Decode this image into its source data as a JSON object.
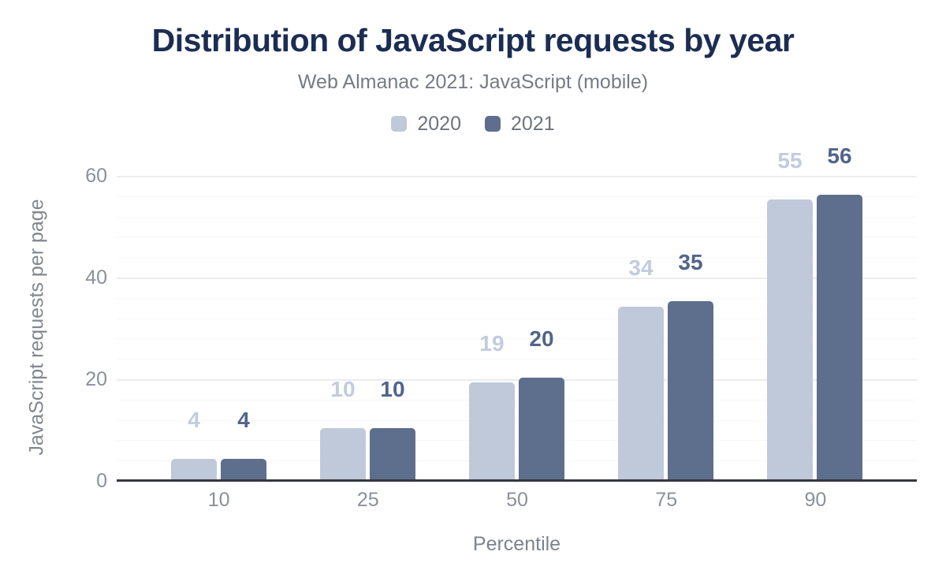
{
  "chart_data": {
    "type": "bar",
    "title": "Distribution of JavaScript requests by year",
    "subtitle": "Web Almanac 2021: JavaScript (mobile)",
    "xlabel": "Percentile",
    "ylabel": "JavaScript requests per page",
    "categories": [
      "10",
      "25",
      "50",
      "75",
      "90"
    ],
    "series": [
      {
        "name": "2020",
        "color": "#c0c9da",
        "label_color": "#c2ccde",
        "values": [
          4,
          10,
          19,
          34,
          55
        ]
      },
      {
        "name": "2021",
        "color": "#5e6e8d",
        "label_color": "#52648b",
        "values": [
          4,
          10,
          20,
          35,
          56
        ]
      }
    ],
    "ylim": [
      0,
      60
    ],
    "yticks": [
      0,
      20,
      40,
      60
    ],
    "minor_tick_interval": 4,
    "grid": "on",
    "legend_position": "top",
    "colors": {
      "title": "#1b2d52",
      "subtitle": "#767b84",
      "axis_text": "#8b909a",
      "axis_line": "#35383c",
      "major_grid": "#ececec",
      "minor_grid": "#f7f7f7",
      "background": "#ffffff"
    }
  }
}
